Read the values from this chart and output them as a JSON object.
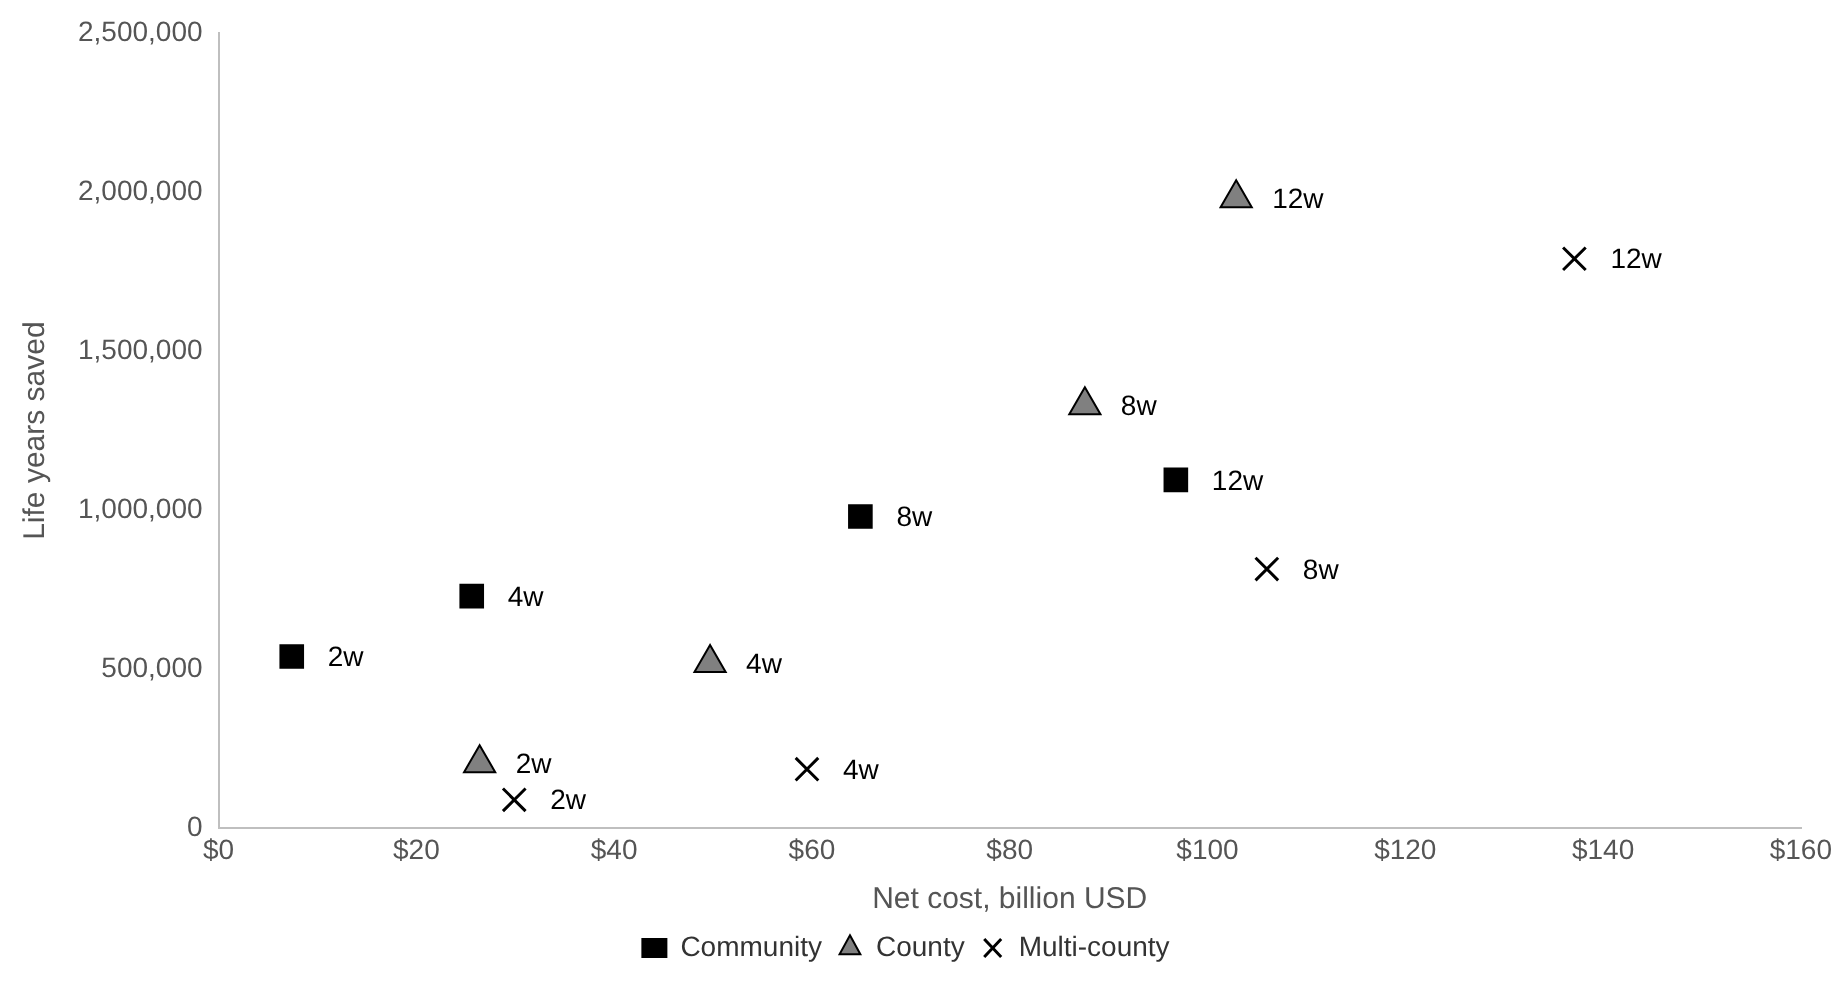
{
  "chart_data": {
    "type": "scatter",
    "xlabel": "Net cost, billion USD",
    "ylabel": "Life years saved",
    "xlim": [
      0,
      160
    ],
    "xticks": [
      {
        "value": 0,
        "label": "$0"
      },
      {
        "value": 20,
        "label": "$20"
      },
      {
        "value": 40,
        "label": "$40"
      },
      {
        "value": 60,
        "label": "$60"
      },
      {
        "value": 80,
        "label": "$80"
      },
      {
        "value": 100,
        "label": "$100"
      },
      {
        "value": 120,
        "label": "$120"
      },
      {
        "value": 140,
        "label": "$140"
      },
      {
        "value": 160,
        "label": "$160"
      }
    ],
    "ylim": [
      0,
      2500000
    ],
    "yticks": [
      {
        "value": 0,
        "label": "0"
      },
      {
        "value": 500000,
        "label": "500,000"
      },
      {
        "value": 1000000,
        "label": "1,000,000"
      },
      {
        "value": 1500000,
        "label": "1,500,000"
      },
      {
        "value": 2000000,
        "label": "2,000,000"
      },
      {
        "value": 2500000,
        "label": "2,500,000"
      }
    ],
    "grid": false,
    "legend": "bottom",
    "annotations": [
      {
        "text": "2w",
        "x": 7.4,
        "y": 540000
      },
      {
        "text": "4w",
        "x": 25.6,
        "y": 730000
      },
      {
        "text": "8w",
        "x": 64.9,
        "y": 980000
      },
      {
        "text": "12w",
        "x": 96.8,
        "y": 1095000
      },
      {
        "text": "2w",
        "x": 26.4,
        "y": 205000
      },
      {
        "text": "4w",
        "x": 49.7,
        "y": 520000
      },
      {
        "text": "8w",
        "x": 87.6,
        "y": 1330000
      },
      {
        "text": "12w",
        "x": 102.9,
        "y": 1980000
      },
      {
        "text": "2w",
        "x": 29.9,
        "y": 90000
      },
      {
        "text": "4w",
        "x": 59.5,
        "y": 186000
      },
      {
        "text": "8w",
        "x": 106,
        "y": 815000
      },
      {
        "text": "12w",
        "x": 137.1,
        "y": 1790000
      }
    ],
    "series": [
      {
        "name": "Community",
        "color": "#000000",
        "marker": "square",
        "x": [
          7.4,
          25.6,
          64.9,
          96.8
        ],
        "values": [
          540000,
          730000,
          980000,
          1095000
        ]
      },
      {
        "name": "County",
        "color": "#808080",
        "marker": "triangle",
        "x": [
          26.4,
          49.7,
          87.6,
          102.9
        ],
        "values": [
          205000,
          520000,
          1330000,
          1980000
        ]
      },
      {
        "name": "Multi-county",
        "color": "#000000",
        "marker": "cross",
        "x": [
          29.9,
          59.5,
          106,
          137.1
        ],
        "values": [
          90000,
          186000,
          815000,
          1790000
        ]
      }
    ]
  }
}
